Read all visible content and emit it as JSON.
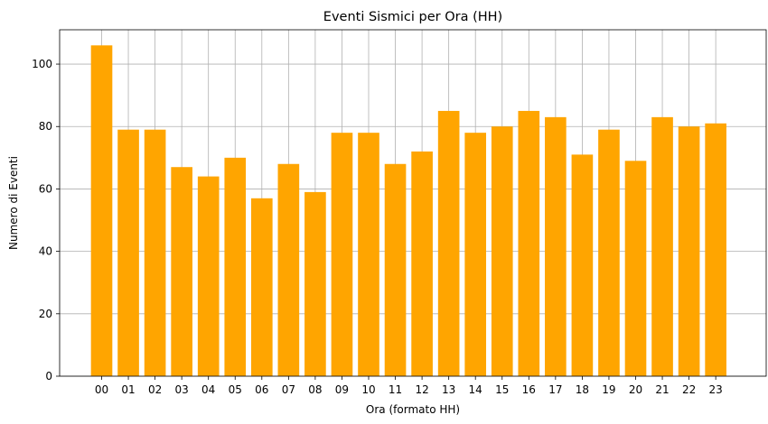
{
  "chart_data": {
    "type": "bar",
    "title": "Eventi Sismici per Ora (HH)",
    "xlabel": "Ora (formato HH)",
    "ylabel": "Numero di Eventi",
    "categories": [
      "00",
      "01",
      "02",
      "03",
      "04",
      "05",
      "06",
      "07",
      "08",
      "09",
      "10",
      "11",
      "12",
      "13",
      "14",
      "15",
      "16",
      "17",
      "18",
      "19",
      "20",
      "21",
      "22",
      "23"
    ],
    "values": [
      106,
      79,
      79,
      67,
      64,
      70,
      57,
      68,
      59,
      78,
      78,
      68,
      72,
      85,
      78,
      80,
      85,
      83,
      71,
      79,
      69,
      83,
      80,
      81
    ],
    "ylim": [
      0,
      111
    ],
    "yticks": [
      "0",
      "20",
      "40",
      "60",
      "80",
      "100"
    ],
    "grid": true,
    "bar_color": "#ffa500"
  }
}
